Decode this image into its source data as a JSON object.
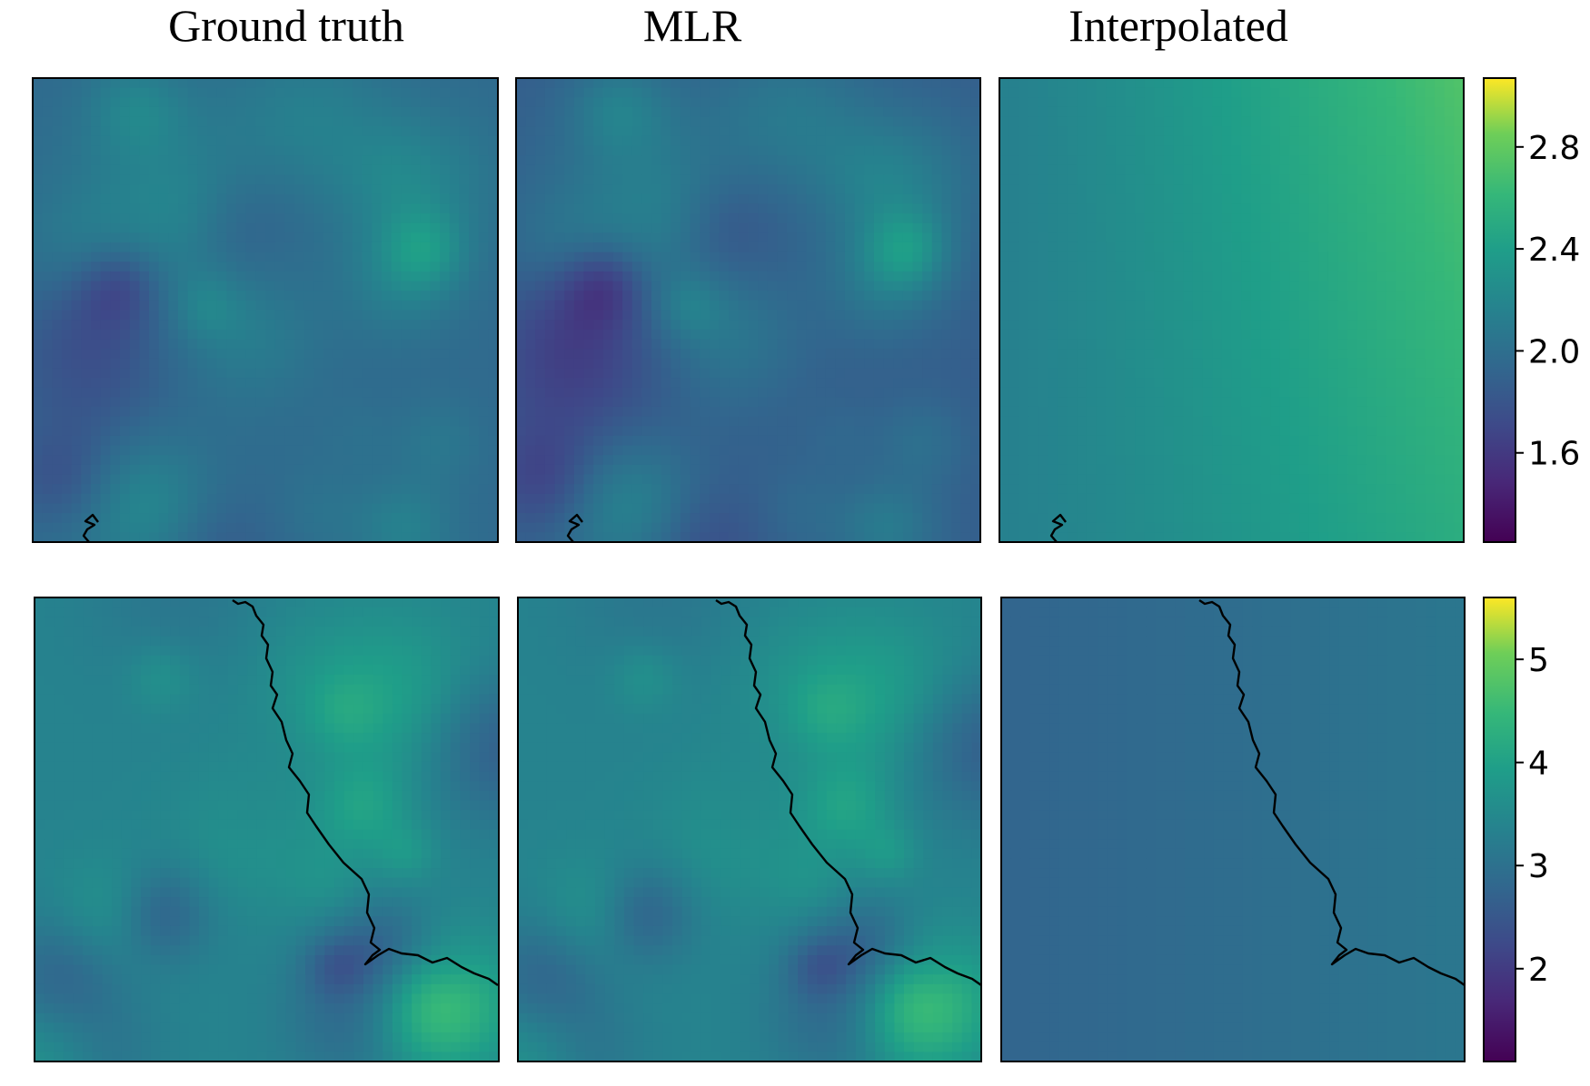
{
  "chart_data": {
    "type": "heatmap",
    "colormap": "viridis",
    "column_titles": [
      "Ground truth",
      "MLR",
      "Interpolated"
    ],
    "grid": true,
    "rows": [
      {
        "colorbar": {
          "vmin": 1.25,
          "vmax": 3.07,
          "ticks": [
            1.6,
            2.0,
            2.4,
            2.8
          ],
          "tick_labels": [
            "1.6",
            "2.0",
            "2.4",
            "2.8"
          ]
        },
        "panels": [
          {
            "title": "Ground truth",
            "field": "textured",
            "mean": 2.05,
            "amplitude": 0.36
          },
          {
            "title": "MLR",
            "field": "textured",
            "mean": 1.98,
            "amplitude": 0.42
          },
          {
            "title": "Interpolated",
            "field": "smooth",
            "left_value": 2.15,
            "right_value": 2.72
          }
        ]
      },
      {
        "colorbar": {
          "vmin": 1.1,
          "vmax": 5.6,
          "ticks": [
            2,
            3,
            4,
            5
          ],
          "tick_labels": [
            "2",
            "3",
            "4",
            "5"
          ]
        },
        "panels": [
          {
            "title": "Ground truth",
            "field": "textured",
            "mean": 3.45,
            "amplitude": 1.05
          },
          {
            "title": "MLR",
            "field": "textured",
            "mean": 3.45,
            "amplitude": 1.05
          },
          {
            "title": "Interpolated",
            "field": "smooth",
            "left_value": 2.75,
            "right_value": 3.1
          }
        ]
      }
    ]
  }
}
